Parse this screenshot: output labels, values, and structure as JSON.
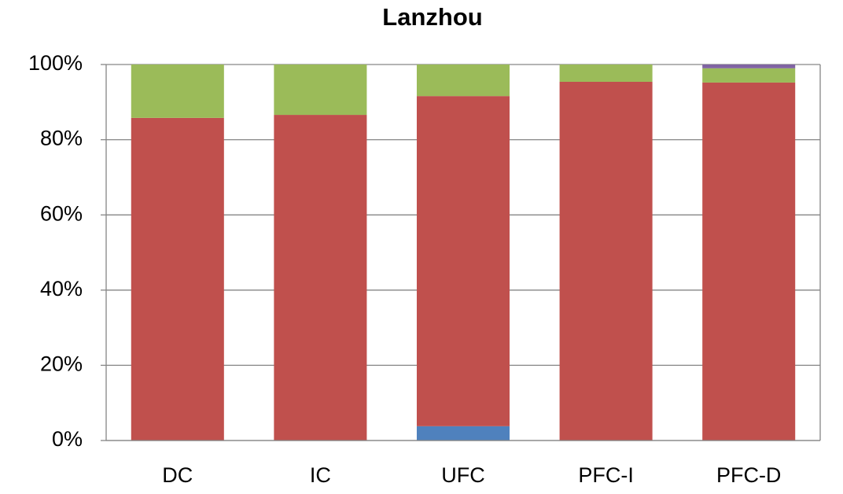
{
  "chart_data": {
    "type": "stacked_bar",
    "title": "Lanzhou",
    "categories": [
      "DC",
      "IC",
      "UFC",
      "PFC-I",
      "PFC-D"
    ],
    "series": [
      {
        "color": "#4f81bd",
        "values": [
          0,
          0,
          3.8,
          0,
          0
        ]
      },
      {
        "color": "#c0504d",
        "values": [
          85.8,
          86.6,
          87.8,
          95.4,
          95.2
        ]
      },
      {
        "color": "#9bbb59",
        "values": [
          14.2,
          13.4,
          8.4,
          4.6,
          3.8
        ]
      },
      {
        "color": "#8064a2",
        "values": [
          0,
          0,
          0,
          0,
          1.0
        ]
      }
    ],
    "ylim": [
      0,
      100
    ],
    "yticks": [
      {
        "value": 0,
        "label": "0%"
      },
      {
        "value": 20,
        "label": "20%"
      },
      {
        "value": 40,
        "label": "40%"
      },
      {
        "value": 60,
        "label": "60%"
      },
      {
        "value": 80,
        "label": "80%"
      },
      {
        "value": 100,
        "label": "100%"
      }
    ],
    "grid": true
  }
}
